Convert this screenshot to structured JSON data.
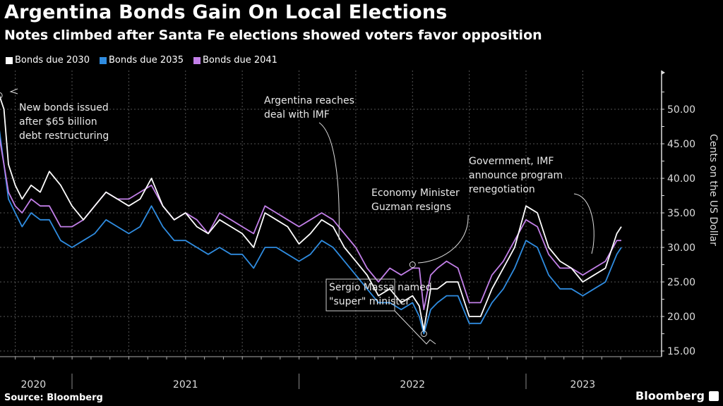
{
  "header": {
    "title": "Argentina Bonds Gain On Local Elections",
    "subtitle": "Notes climbed after Santa Fe elections showed voters favor opposition"
  },
  "footer": {
    "source": "Source: Bloomberg",
    "brand": "Bloomberg"
  },
  "chart_data": {
    "type": "line",
    "title": "Argentina Bonds Gain On Local Elections",
    "subtitle": "Notes climbed after Santa Fe elections showed voters favor opposition",
    "xlabel": "",
    "ylabel": "Cents on the US Dollar",
    "ylim": [
      14,
      54
    ],
    "yticks": [
      "15.00",
      "20.00",
      "25.00",
      "30.00",
      "35.00",
      "40.00",
      "45.00",
      "50.00"
    ],
    "ytick_values": [
      15,
      20,
      25,
      30,
      35,
      40,
      45,
      50
    ],
    "xlim": [
      2020.67,
      2023.45
    ],
    "year_labels": [
      {
        "label": "2020",
        "x": 2020.83
      },
      {
        "label": "2021",
        "x": 2021.5
      },
      {
        "label": "2022",
        "x": 2022.5
      },
      {
        "label": "2023",
        "x": 2023.25
      }
    ],
    "year_separators": [
      2021.0,
      2022.0,
      2023.0
    ],
    "grid": true,
    "legend_position": "top-left",
    "x": [
      2020.68,
      2020.7,
      2020.72,
      2020.75,
      2020.78,
      2020.82,
      2020.86,
      2020.9,
      2020.95,
      2021.0,
      2021.05,
      2021.1,
      2021.15,
      2021.2,
      2021.25,
      2021.3,
      2021.35,
      2021.4,
      2021.45,
      2021.5,
      2021.55,
      2021.6,
      2021.65,
      2021.7,
      2021.75,
      2021.8,
      2021.85,
      2021.9,
      2021.95,
      2022.0,
      2022.05,
      2022.1,
      2022.15,
      2022.2,
      2022.25,
      2022.3,
      2022.35,
      2022.4,
      2022.45,
      2022.5,
      2022.53,
      2022.55,
      2022.58,
      2022.61,
      2022.65,
      2022.7,
      2022.75,
      2022.8,
      2022.85,
      2022.9,
      2022.95,
      2023.0,
      2023.05,
      2023.1,
      2023.15,
      2023.2,
      2023.25,
      2023.3,
      2023.35,
      2023.4,
      2023.42
    ],
    "series": [
      {
        "name": "Bonds due 2030",
        "color": "#ffffff",
        "values": [
          52,
          50,
          42,
          39,
          37,
          39,
          38,
          41,
          39,
          36,
          34,
          36,
          38,
          37,
          36,
          37,
          40,
          36,
          34,
          35,
          33,
          32,
          34,
          33,
          32,
          30,
          35,
          34,
          33,
          30.5,
          32,
          34,
          33,
          30,
          28,
          26,
          23,
          24,
          22,
          23,
          21.5,
          18,
          24,
          24,
          25,
          25,
          20,
          20,
          24,
          27,
          30,
          36,
          35,
          30,
          28,
          27,
          25,
          26,
          27,
          32,
          33
        ]
      },
      {
        "name": "Bonds due 2035",
        "color": "#2f8ce0",
        "values": [
          47,
          42,
          37,
          35,
          33,
          35,
          34,
          34,
          31,
          30,
          31,
          32,
          34,
          33,
          32,
          33,
          36,
          33,
          31,
          31,
          30,
          29,
          30,
          29,
          29,
          27,
          30,
          30,
          29,
          28,
          29,
          31,
          30,
          28,
          26,
          24,
          22,
          22,
          21,
          22,
          20,
          17.5,
          21,
          22,
          23,
          23,
          19,
          19,
          22,
          24,
          27,
          31,
          30,
          26,
          24,
          24,
          23,
          24,
          25,
          29,
          30
        ]
      },
      {
        "name": "Bonds due 2041",
        "color": "#c27fe8",
        "values": [
          46,
          42,
          38,
          36,
          35,
          37,
          36,
          36,
          33,
          33,
          34,
          36,
          38,
          37,
          37,
          38,
          39,
          36,
          34,
          35,
          34,
          32,
          35,
          34,
          33,
          32,
          36,
          35,
          34,
          33,
          34,
          35,
          34,
          32,
          30,
          27,
          25,
          27,
          26,
          27,
          27,
          21,
          26,
          27,
          28,
          27,
          22,
          22,
          26,
          28,
          31,
          34,
          33,
          29,
          27,
          27,
          26,
          27,
          28,
          31,
          31
        ]
      }
    ],
    "annotations": [
      {
        "text": [
          "New bonds issued",
          "after $65 billion",
          "debt restructuring"
        ],
        "target": [
          2020.68,
          52
        ]
      },
      {
        "text": [
          "Argentina reaches",
          "deal with IMF"
        ],
        "target": [
          2022.03,
          30.5
        ]
      },
      {
        "text": [
          "Economy Minister",
          "Guzman resigns"
        ],
        "target": [
          2022.5,
          27.5
        ]
      },
      {
        "text": [
          "Government, IMF",
          "announce program",
          "renegotiation"
        ],
        "target": [
          2023.07,
          28.5
        ]
      },
      {
        "text": [
          "Sergio Massa named",
          "\"super\" minister"
        ],
        "target": [
          2022.55,
          17.5
        ],
        "boxed": true
      }
    ]
  }
}
